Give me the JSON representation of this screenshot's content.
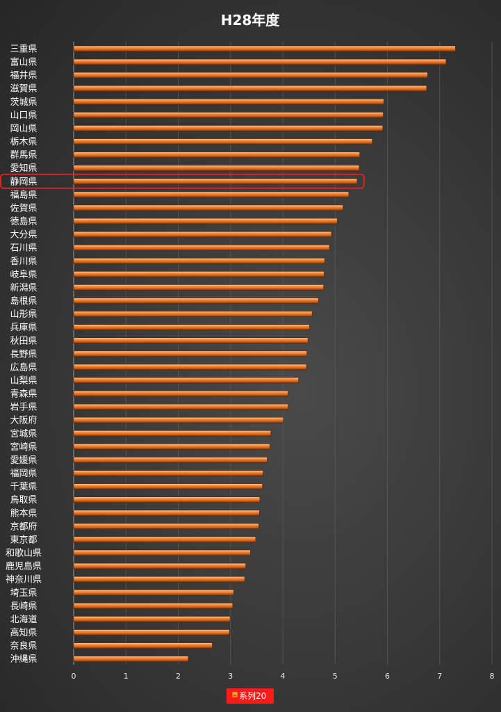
{
  "chart_data": {
    "type": "bar",
    "orientation": "horizontal",
    "title": "H28年度",
    "categories": [
      "三重県",
      "富山県",
      "福井県",
      "滋賀県",
      "茨城県",
      "山口県",
      "岡山県",
      "栃木県",
      "群馬県",
      "愛知県",
      "静岡県",
      "福島県",
      "佐賀県",
      "徳島県",
      "大分県",
      "石川県",
      "香川県",
      "岐阜県",
      "新潟県",
      "島根県",
      "山形県",
      "兵庫県",
      "秋田県",
      "長野県",
      "広島県",
      "山梨県",
      "青森県",
      "岩手県",
      "大阪府",
      "宮城県",
      "宮崎県",
      "愛媛県",
      "福岡県",
      "千葉県",
      "鳥取県",
      "熊本県",
      "京都府",
      "東京都",
      "和歌山県",
      "鹿児島県",
      "神奈川県",
      "埼玉県",
      "長崎県",
      "北海道",
      "高知県",
      "奈良県",
      "沖縄県"
    ],
    "series": [
      {
        "name": "系列20",
        "color": "#e8701e",
        "values": [
          7.3,
          7.12,
          6.77,
          6.75,
          5.93,
          5.92,
          5.91,
          5.71,
          5.47,
          5.46,
          5.42,
          5.26,
          5.15,
          5.04,
          4.93,
          4.89,
          4.8,
          4.79,
          4.78,
          4.68,
          4.56,
          4.51,
          4.48,
          4.46,
          4.45,
          4.3,
          4.1,
          4.1,
          4.01,
          3.77,
          3.75,
          3.7,
          3.62,
          3.61,
          3.56,
          3.55,
          3.54,
          3.48,
          3.38,
          3.29,
          3.27,
          3.06,
          3.04,
          2.99,
          2.98,
          2.65,
          2.19
        ]
      }
    ],
    "xlim": [
      0,
      8
    ],
    "xticks": [
      "0",
      "1",
      "2",
      "3",
      "4",
      "5",
      "6",
      "7",
      "8"
    ],
    "grid": true,
    "legend_position": "bottom",
    "highlight": {
      "category": "静岡県",
      "color": "#e02020"
    }
  }
}
